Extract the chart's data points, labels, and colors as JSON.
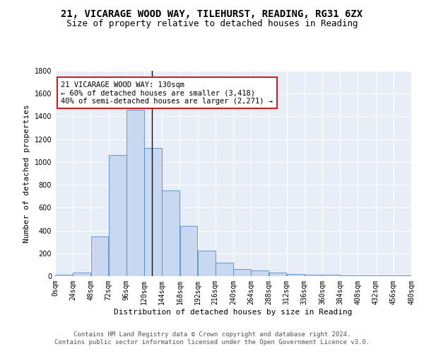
{
  "title1": "21, VICARAGE WOOD WAY, TILEHURST, READING, RG31 6ZX",
  "title2": "Size of property relative to detached houses in Reading",
  "xlabel": "Distribution of detached houses by size in Reading",
  "ylabel": "Number of detached properties",
  "bin_edges": [
    0,
    24,
    48,
    72,
    96,
    120,
    144,
    168,
    192,
    216,
    240,
    264,
    288,
    312,
    336,
    360,
    384,
    408,
    432,
    456,
    480
  ],
  "bar_heights": [
    10,
    30,
    350,
    1060,
    1460,
    1125,
    750,
    440,
    225,
    115,
    60,
    50,
    30,
    20,
    15,
    10,
    5,
    5,
    5,
    5
  ],
  "bar_color": "#c8d8f0",
  "bar_edge_color": "#5588cc",
  "property_size": 130,
  "vline_color": "#111111",
  "annotation_line1": "21 VICARAGE WOOD WAY: 130sqm",
  "annotation_line2": "← 60% of detached houses are smaller (3,418)",
  "annotation_line3": "40% of semi-detached houses are larger (2,271) →",
  "annotation_box_color": "#ffffff",
  "annotation_border_color": "#cc2222",
  "ylim": [
    0,
    1800
  ],
  "yticks": [
    0,
    200,
    400,
    600,
    800,
    1000,
    1200,
    1400,
    1600,
    1800
  ],
  "background_color": "#e8eef8",
  "grid_color": "#ffffff",
  "footer_line1": "Contains HM Land Registry data © Crown copyright and database right 2024.",
  "footer_line2": "Contains public sector information licensed under the Open Government Licence v3.0.",
  "title1_fontsize": 10,
  "title2_fontsize": 9,
  "xlabel_fontsize": 8,
  "ylabel_fontsize": 8,
  "tick_fontsize": 7,
  "annotation_fontsize": 7.5,
  "footer_fontsize": 6.5
}
